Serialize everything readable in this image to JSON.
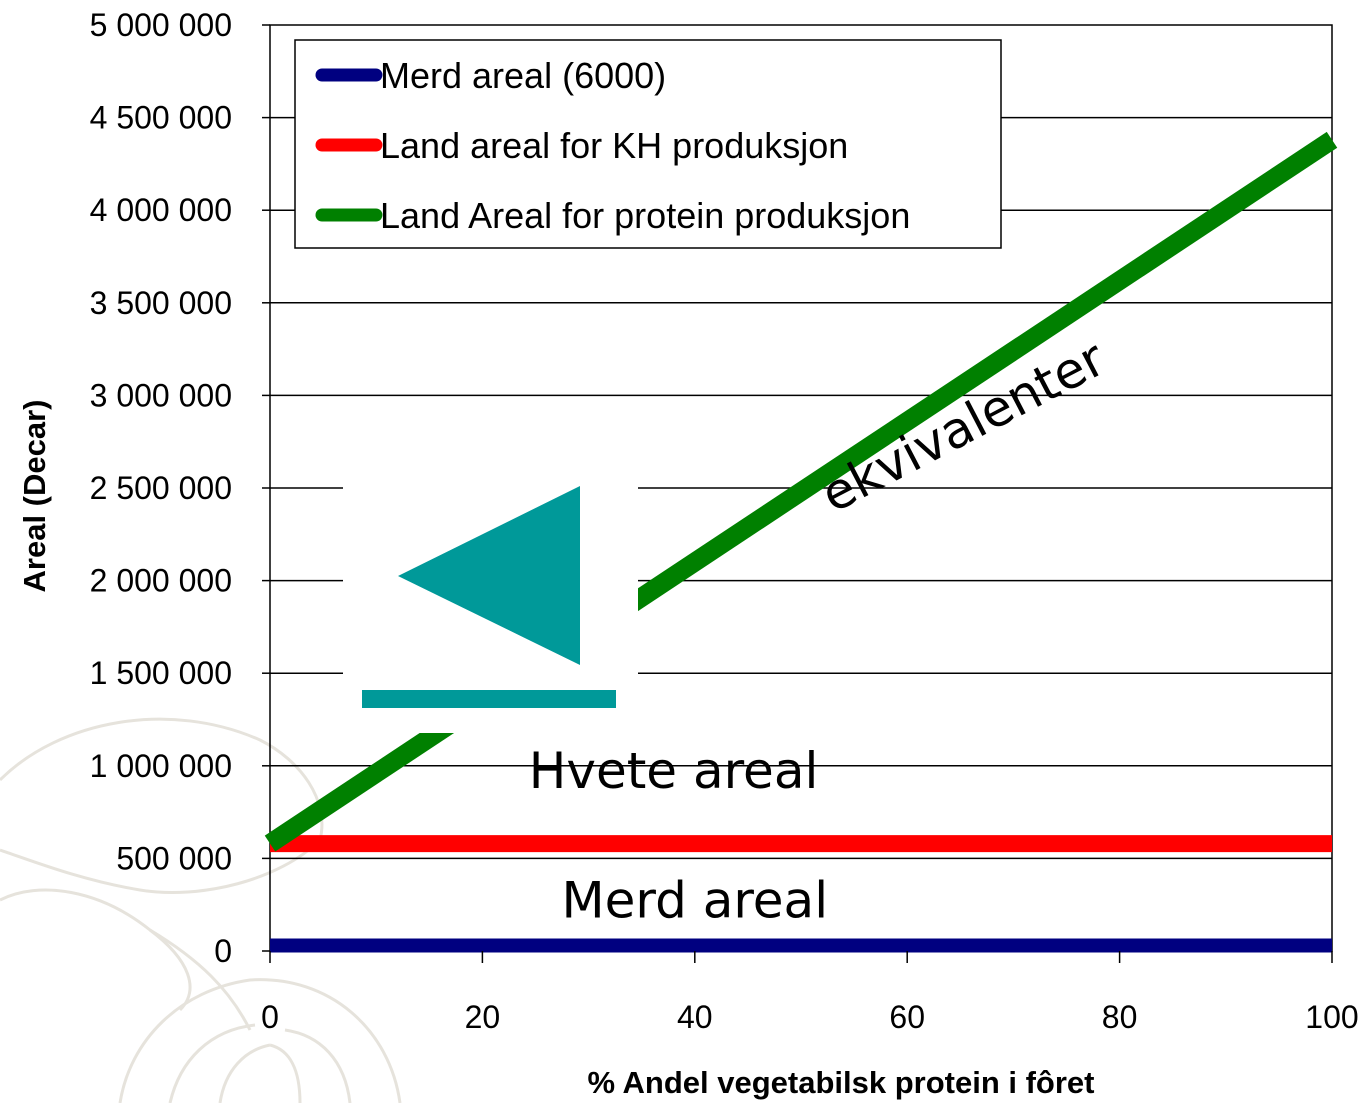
{
  "chart_data": {
    "type": "line",
    "title": "",
    "xlabel": "% Andel vegetabilsk protein i fôret",
    "ylabel": "Areal (Decar)",
    "x": [
      0,
      100
    ],
    "xlim": [
      0,
      100
    ],
    "ylim": [
      0,
      5000000
    ],
    "x_ticks": [
      0,
      20,
      40,
      60,
      80,
      100
    ],
    "x_tick_labels": [
      "0",
      "20",
      "40",
      "60",
      "80",
      "100"
    ],
    "y_ticks": [
      0,
      500000,
      1000000,
      1500000,
      2000000,
      2500000,
      3000000,
      3500000,
      4000000,
      4500000,
      5000000
    ],
    "y_tick_labels": [
      "0",
      "500 000",
      "1 000 000",
      "1 500 000",
      "2 000 000",
      "2 500 000",
      "3 000 000",
      "3 500 000",
      "4 000 000",
      "4 500 000",
      "5 000 000"
    ],
    "grid": "horizontal",
    "legend_position": "top-left",
    "series": [
      {
        "name": "Merd areal (6000)",
        "color": "#000080",
        "values": [
          30000,
          30000
        ]
      },
      {
        "name": "Land areal for KH produksjon",
        "color": "#ff0000",
        "values": [
          580000,
          580000
        ]
      },
      {
        "name": "Land Areal for protein produksjon",
        "color": "#008000",
        "values": [
          580000,
          4380000
        ]
      }
    ],
    "annotations": [
      {
        "text": "ekvivalenter",
        "x": 66,
        "y": 2750000,
        "rotation_deg": -27.5
      },
      {
        "text": "Hvete areal",
        "x": 38,
        "y": 880000,
        "rotation_deg": 0
      },
      {
        "text": "Merd areal",
        "x": 40,
        "y": 180000,
        "rotation_deg": 0
      }
    ]
  },
  "overlay": {
    "icon": "navigation-back-triangle-icon",
    "color": "#009999"
  }
}
